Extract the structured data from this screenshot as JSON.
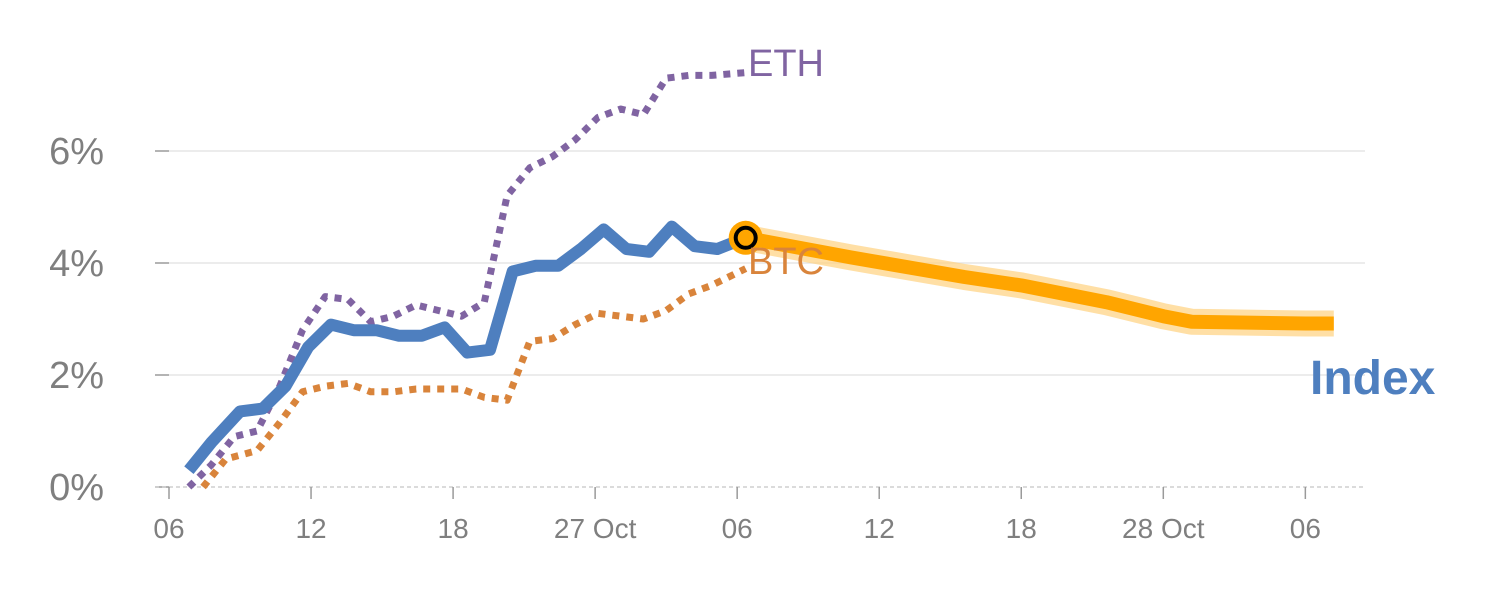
{
  "chart_data": {
    "type": "line",
    "title": "",
    "xlabel": "",
    "ylabel": "",
    "y_unit": "%",
    "ylim": [
      0,
      7
    ],
    "y_ticks": [
      0,
      2,
      4,
      6
    ],
    "y_tick_labels": [
      "0%",
      "2%",
      "4%",
      "6%"
    ],
    "x_ticks": [
      0,
      5,
      10,
      15,
      20,
      25,
      30,
      35,
      40
    ],
    "x_tick_labels": [
      "06",
      "12",
      "18",
      "27 Oct",
      "06",
      "12",
      "18",
      "28 Oct",
      "06"
    ],
    "grid": "horizontal",
    "colors": {
      "index": "#4e7fbf",
      "btc": "#d9843b",
      "eth": "#8064a2",
      "forecast": "#ffa500",
      "forecast_band": "#ffd27f"
    },
    "series": [
      {
        "name": "ETH",
        "style": "dotted",
        "x": [
          0.7,
          1.5,
          2.3,
          3.1,
          3.9,
          4.7,
          5.5,
          6.3,
          7.1,
          7.9,
          8.7,
          9.5,
          10.3,
          11.1,
          11.9,
          12.7,
          13.5,
          14.3,
          15.1,
          15.9,
          16.7,
          17.5,
          18.3,
          19.1,
          20.3
        ],
        "values": [
          0.0,
          0.4,
          0.9,
          1.0,
          1.8,
          2.8,
          3.4,
          3.35,
          2.95,
          3.05,
          3.25,
          3.15,
          3.05,
          3.3,
          5.2,
          5.7,
          5.9,
          6.2,
          6.6,
          6.75,
          6.65,
          7.3,
          7.35,
          7.35,
          7.4
        ]
      },
      {
        "name": "BTC",
        "style": "dotted",
        "x": [
          1.2,
          2.0,
          3.1,
          3.9,
          4.7,
          5.5,
          6.3,
          7.1,
          7.9,
          8.7,
          9.5,
          10.3,
          11.1,
          11.9,
          12.7,
          13.5,
          14.3,
          15.1,
          15.9,
          16.7,
          17.5,
          18.3,
          19.1,
          20.3
        ],
        "values": [
          0.0,
          0.5,
          0.65,
          1.15,
          1.7,
          1.8,
          1.85,
          1.7,
          1.7,
          1.75,
          1.75,
          1.75,
          1.6,
          1.55,
          2.6,
          2.65,
          2.9,
          3.1,
          3.05,
          3.0,
          3.15,
          3.45,
          3.6,
          3.9
        ]
      },
      {
        "name": "Index",
        "style": "solid",
        "x": [
          0.7,
          1.5,
          2.5,
          3.3,
          4.1,
          4.9,
          5.7,
          6.5,
          7.3,
          8.1,
          8.9,
          9.7,
          10.5,
          11.3,
          12.1,
          12.9,
          13.7,
          14.5,
          15.3,
          16.1,
          16.9,
          17.7,
          18.5,
          19.3,
          20.3
        ],
        "values": [
          0.3,
          0.8,
          1.35,
          1.4,
          1.8,
          2.5,
          2.9,
          2.8,
          2.8,
          2.7,
          2.7,
          2.85,
          2.4,
          2.45,
          3.85,
          3.95,
          3.95,
          4.25,
          4.6,
          4.25,
          4.2,
          4.65,
          4.3,
          4.25,
          4.45
        ]
      },
      {
        "name": "",
        "style": "forecast",
        "x": [
          20.3,
          24.0,
          28.0,
          30.0,
          33.0,
          35.0,
          36.0,
          40.0,
          41.0
        ],
        "values": [
          4.45,
          4.1,
          3.75,
          3.6,
          3.3,
          3.05,
          2.95,
          2.92,
          2.92
        ]
      }
    ],
    "marker": {
      "x": 20.3,
      "value": 4.45
    },
    "labels": {
      "eth": "ETH",
      "btc": "BTC",
      "index": "Index"
    }
  }
}
